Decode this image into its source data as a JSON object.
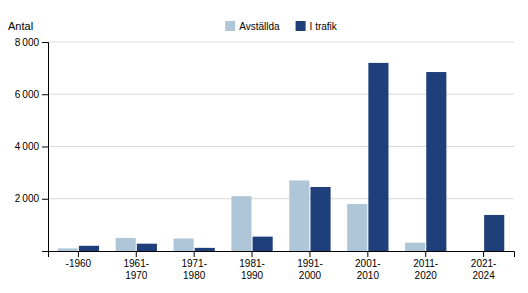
{
  "chart_data": {
    "type": "bar",
    "ylabel": "Antal",
    "categories": [
      "-1960",
      "1961-\n1970",
      "1971-\n1980",
      "1981-\n1990",
      "1991-\n2000",
      "2001-\n2010",
      "2011-\n2020",
      "2021-\n2024"
    ],
    "series": [
      {
        "name": "Avställda",
        "color": "#aec6d8",
        "values": [
          100,
          500,
          480,
          2100,
          2700,
          1800,
          320,
          0
        ]
      },
      {
        "name": "I trafik",
        "color": "#1f3f7a",
        "values": [
          200,
          280,
          120,
          550,
          2450,
          7200,
          6850,
          1380
        ]
      }
    ],
    "ylim": [
      0,
      8000
    ],
    "yticks": [
      {
        "value": 2000,
        "label": "2 000"
      },
      {
        "value": 4000,
        "label": "4 000"
      },
      {
        "value": 6000,
        "label": "6 000"
      },
      {
        "value": 8000,
        "label": "8 000"
      }
    ],
    "grid": true,
    "legend": "top"
  }
}
